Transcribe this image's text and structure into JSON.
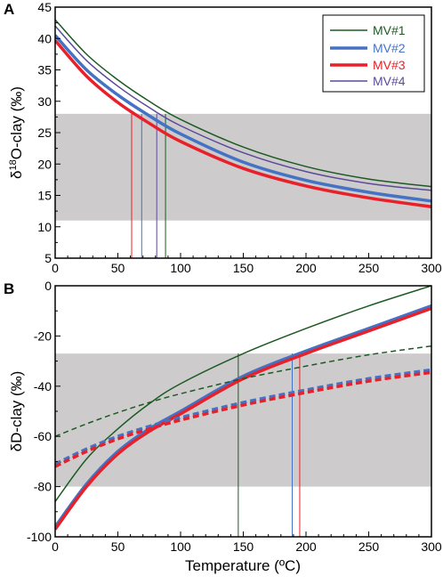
{
  "chart_data": [
    {
      "panel_label": "A",
      "type": "line",
      "ylabel_parts": [
        "δ",
        "18",
        "O-clay (‰)"
      ],
      "xlim": [
        0,
        300
      ],
      "ylim": [
        5,
        45
      ],
      "xticks": [
        "0",
        "50",
        "100",
        "150",
        "200",
        "250",
        "300"
      ],
      "yticks": [
        "5",
        "10",
        "15",
        "20",
        "25",
        "30",
        "35",
        "40",
        "45"
      ],
      "shaded_band": [
        11,
        28
      ],
      "legend_position": "top-right",
      "series": [
        {
          "name": "MV#1",
          "color": "#1d5a23",
          "width": 1.5,
          "x": [
            0,
            25,
            50,
            75,
            100,
            150,
            200,
            250,
            300
          ],
          "y": [
            43.0,
            37.5,
            33.4,
            30.0,
            27.1,
            22.7,
            19.6,
            17.6,
            16.4
          ]
        },
        {
          "name": "MV#2",
          "color": "#4472c4",
          "width": 3.5,
          "x": [
            0,
            25,
            50,
            75,
            100,
            150,
            200,
            250,
            300
          ],
          "y": [
            40.5,
            35.0,
            31.0,
            27.7,
            24.8,
            20.3,
            17.4,
            15.5,
            14.1
          ]
        },
        {
          "name": "MV#3",
          "color": "#e8202a",
          "width": 3.5,
          "x": [
            0,
            25,
            50,
            75,
            100,
            150,
            200,
            250,
            300
          ],
          "y": [
            39.7,
            34.0,
            29.8,
            26.5,
            23.6,
            19.3,
            16.5,
            14.6,
            13.2
          ]
        },
        {
          "name": "MV#4",
          "color": "#5b4a9b",
          "width": 1.5,
          "x": [
            0,
            25,
            50,
            75,
            100,
            150,
            200,
            250,
            300
          ],
          "y": [
            42.0,
            36.5,
            32.4,
            29.0,
            26.1,
            21.8,
            18.8,
            16.9,
            15.8
          ]
        }
      ],
      "verticals": [
        {
          "x": 61,
          "color": "#e8202a"
        },
        {
          "x": 69,
          "color": "#4472c4"
        },
        {
          "x": 81,
          "color": "#5b4a9b"
        },
        {
          "x": 88,
          "color": "#1d5a23"
        }
      ]
    },
    {
      "panel_label": "B",
      "type": "line",
      "ylabel": "δD-clay (‰)",
      "xlabel": "Temperature (ºC)",
      "xlim": [
        0,
        300
      ],
      "ylim": [
        -100,
        0
      ],
      "xticks": [
        "0",
        "50",
        "100",
        "150",
        "200",
        "250",
        "300"
      ],
      "yticks": [
        "-100",
        "-80",
        "-60",
        "-40",
        "-20",
        "0"
      ],
      "shaded_band": [
        -80,
        -27
      ],
      "series": [
        {
          "color": "#1d5a23",
          "width": 1.5,
          "dash": "",
          "x": [
            0,
            25,
            50,
            75,
            100,
            150,
            200,
            250,
            300
          ],
          "y": [
            -86,
            -69,
            -57,
            -47,
            -39,
            -27,
            -17,
            -8,
            0
          ]
        },
        {
          "color": "#4472c4",
          "width": 3.5,
          "dash": "",
          "x": [
            0,
            25,
            50,
            75,
            100,
            150,
            200,
            250,
            300
          ],
          "y": [
            -96,
            -79,
            -66,
            -57,
            -50,
            -36,
            -26,
            -17,
            -8
          ]
        },
        {
          "color": "#e8202a",
          "width": 3.5,
          "dash": "",
          "x": [
            0,
            25,
            50,
            75,
            100,
            150,
            200,
            250,
            300
          ],
          "y": [
            -97,
            -80,
            -67,
            -58,
            -51,
            -37,
            -27,
            -18,
            -9
          ]
        },
        {
          "color": "#1d5a23",
          "width": 1.5,
          "dash": "6 4",
          "x": [
            0,
            25,
            50,
            75,
            100,
            150,
            200,
            250,
            300
          ],
          "y": [
            -60,
            -55,
            -50.5,
            -46.5,
            -43,
            -37,
            -32,
            -27.5,
            -24
          ]
        },
        {
          "color": "#4472c4",
          "width": 3.5,
          "dash": "7 4",
          "x": [
            0,
            25,
            50,
            75,
            100,
            150,
            200,
            250,
            300
          ],
          "y": [
            -71,
            -65,
            -60,
            -56,
            -52.5,
            -46.5,
            -41.5,
            -37,
            -33.5
          ]
        },
        {
          "color": "#e8202a",
          "width": 3.5,
          "dash": "7 4",
          "x": [
            0,
            25,
            50,
            75,
            100,
            150,
            200,
            250,
            300
          ],
          "y": [
            -72,
            -66,
            -61,
            -57,
            -53.5,
            -47.5,
            -42.5,
            -38,
            -34.5
          ]
        }
      ],
      "verticals": [
        {
          "x": 146,
          "color": "#1d5a23"
        },
        {
          "x": 189,
          "color": "#4472c4"
        },
        {
          "x": 195,
          "color": "#e8202a"
        }
      ]
    }
  ]
}
